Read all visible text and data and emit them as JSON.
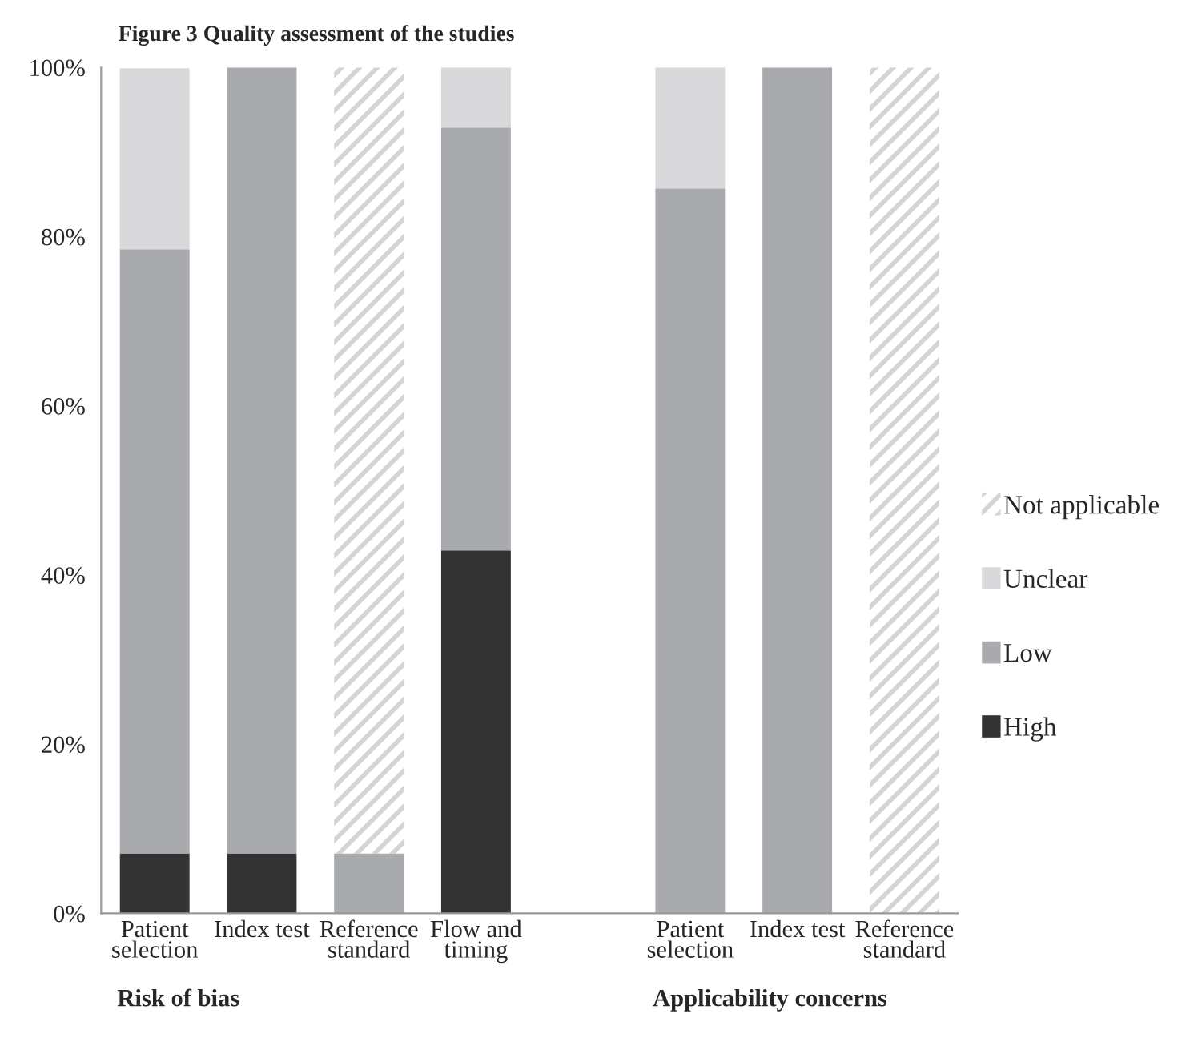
{
  "chart_data": {
    "type": "bar",
    "stacked": true,
    "title": "Figure 3 Quality assessment of the studies",
    "categories": [
      "Patient selection",
      "Index test",
      "Reference standard",
      "Flow and timing",
      null,
      "Patient selection",
      "Index test",
      "Reference standard"
    ],
    "series": [
      {
        "name": "High",
        "color": "#333333",
        "values": [
          7.1,
          7.1,
          0,
          42.9,
          null,
          0,
          0,
          0
        ]
      },
      {
        "name": "Low",
        "color": "#a9aaae",
        "values": [
          71.4,
          92.9,
          7.1,
          50,
          null,
          85.7,
          100,
          0
        ]
      },
      {
        "name": "Unclear",
        "color": "#d9d9db",
        "values": [
          21.4,
          0,
          0,
          7.1,
          null,
          14.3,
          0,
          0
        ]
      },
      {
        "name": "Not applicable",
        "color": "#d4d4d4",
        "values": [
          0,
          0,
          92.9,
          0,
          null,
          0,
          0,
          100
        ]
      }
    ],
    "ylim": [
      0,
      100
    ],
    "yticks": [
      {
        "value": 0,
        "label": "0%"
      },
      {
        "value": 20,
        "label": "20%"
      },
      {
        "value": 40,
        "label": "40%"
      },
      {
        "value": 60,
        "label": "60%"
      },
      {
        "value": 80,
        "label": "80%"
      },
      {
        "value": 100,
        "label": "100%"
      }
    ],
    "annotations": [
      "Risk of bias",
      "Applicability concerns"
    ],
    "legend": "right",
    "grid": false
  }
}
